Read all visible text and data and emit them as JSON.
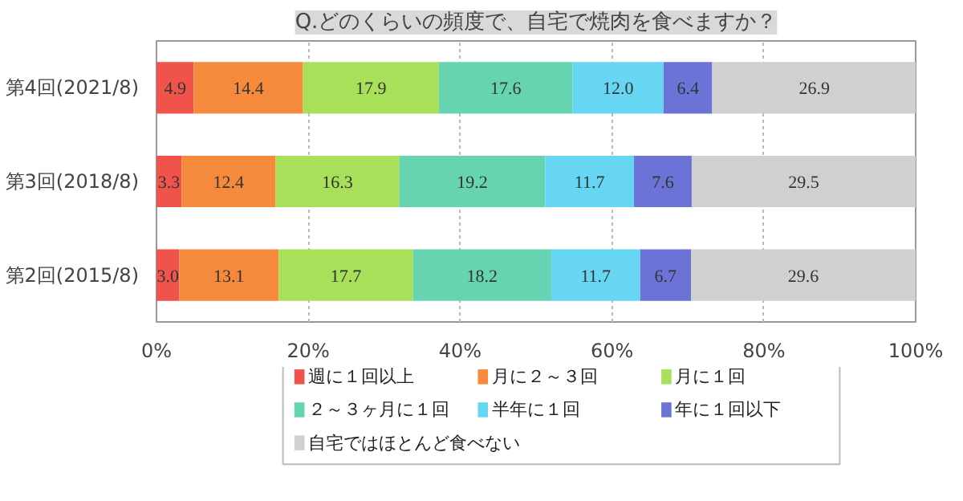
{
  "chart_data": {
    "type": "bar",
    "orientation": "horizontal",
    "stacked": true,
    "title": "Q.どのくらいの頻度で、自宅で焼肉を食べますか？",
    "categories": [
      "第4回(2021/8)",
      "第3回(2018/8)",
      "第2回(2015/8)"
    ],
    "series": [
      {
        "name": "週に１回以上",
        "color": "#f0534a",
        "values": [
          4.9,
          3.3,
          3.0
        ],
        "value_labels": [
          "4.9",
          "3.3",
          "3.0"
        ]
      },
      {
        "name": "月に２～３回",
        "color": "#f58a3c",
        "values": [
          14.4,
          12.4,
          13.1
        ],
        "value_labels": [
          "14.4",
          "12.4",
          "13.1"
        ]
      },
      {
        "name": "月に１回",
        "color": "#a8e05a",
        "values": [
          17.9,
          16.3,
          17.7
        ],
        "value_labels": [
          "17.9",
          "16.3",
          "17.7"
        ]
      },
      {
        "name": "２～３ヶ月に１回",
        "color": "#66d4b0",
        "values": [
          17.6,
          19.2,
          18.2
        ],
        "value_labels": [
          "17.6",
          "19.2",
          "18.2"
        ]
      },
      {
        "name": "半年に１回",
        "color": "#66d6f2",
        "values": [
          12.0,
          11.7,
          11.7
        ],
        "value_labels": [
          "12.0",
          "11.7",
          "11.7"
        ]
      },
      {
        "name": "年に１回以下",
        "color": "#6b74d6",
        "values": [
          6.4,
          7.6,
          6.7
        ],
        "value_labels": [
          "6.4",
          "7.6",
          "6.7"
        ]
      },
      {
        "name": "自宅ではほとんど食べない",
        "color": "#d0d0d0",
        "values": [
          26.9,
          29.5,
          29.6
        ],
        "value_labels": [
          "26.9",
          "29.5",
          "29.6"
        ]
      }
    ],
    "xlim": [
      0,
      100
    ],
    "xticks": [
      {
        "value": 0,
        "label": "0%"
      },
      {
        "value": 20,
        "label": "20%"
      },
      {
        "value": 40,
        "label": "40%"
      },
      {
        "value": 60,
        "label": "60%"
      },
      {
        "value": 80,
        "label": "80%"
      },
      {
        "value": 100,
        "label": "100%"
      }
    ],
    "grid": "x",
    "legend": "bottom"
  }
}
